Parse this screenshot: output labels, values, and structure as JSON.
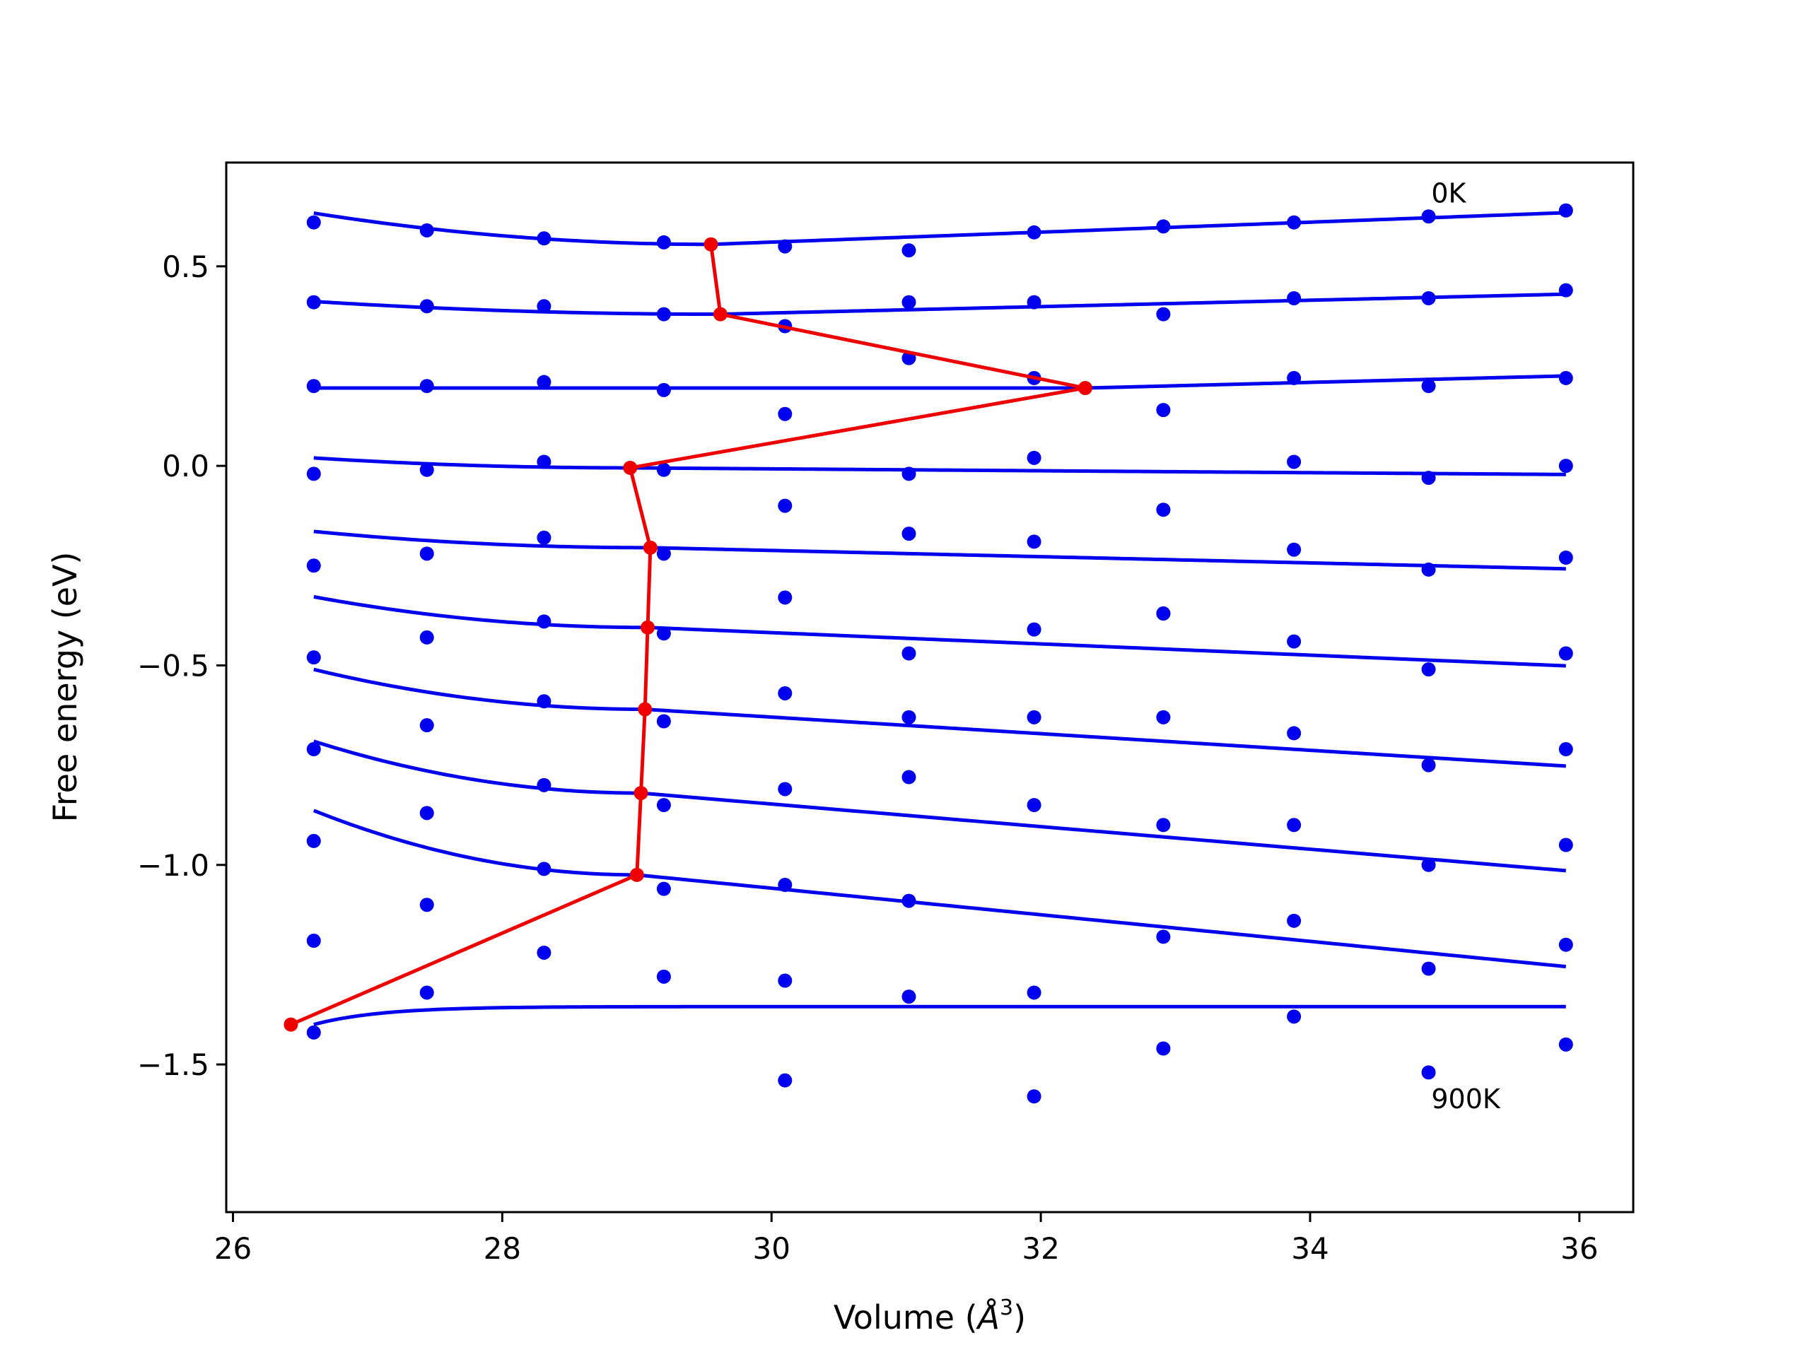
{
  "chart_data": {
    "type": "scatter",
    "xlabel": "Volume (",
    "xlabel_sym": "Å",
    "xlabel_exp": "3",
    "xlabel_close": ")",
    "ylabel": "Free energy (eV)",
    "xlim": [
      25.95,
      36.4
    ],
    "ylim": [
      -1.87,
      0.76
    ],
    "xticks": [
      26,
      28,
      30,
      32,
      34,
      36
    ],
    "xtick_labels": [
      "26",
      "28",
      "30",
      "32",
      "34",
      "36"
    ],
    "yticks": [
      0.5,
      0.0,
      -0.5,
      -1.0,
      -1.5
    ],
    "ytick_labels": [
      "0.5",
      "0.0",
      "−0.5",
      "−1.0",
      "−1.5"
    ],
    "annotations": [
      {
        "text": "0K",
        "x": 34.9,
        "y": 0.66
      },
      {
        "text": "900K",
        "x": 34.9,
        "y": -1.61
      }
    ],
    "colors": {
      "points": "#0000ee",
      "fits": "#0000ee",
      "minimum_path": "#ee0000"
    },
    "volumes": [
      26.6,
      27.44,
      28.31,
      29.2,
      30.1,
      31.02,
      31.95,
      32.91,
      33.88,
      34.88,
      35.9
    ],
    "series": [
      {
        "temperature": "0K",
        "y": [
          0.61,
          0.59,
          0.57,
          0.56,
          0.55,
          0.54,
          0.585,
          0.6,
          0.61,
          0.625,
          0.64
        ],
        "fit": {
          "vmin": 29.55,
          "fmin": 0.555,
          "a": 0.009,
          "b": 0.0125,
          "start": 26.6
        }
      },
      {
        "y": [
          0.41,
          0.4,
          0.4,
          0.38,
          0.35,
          0.41,
          0.41,
          0.38,
          0.42,
          0.42,
          0.44
        ],
        "fit": {
          "vmin": 29.62,
          "fmin": 0.38,
          "a": 0.0035,
          "b": 0.008,
          "start": 26.6
        }
      },
      {
        "y": [
          0.2,
          0.2,
          0.21,
          0.19,
          0.13,
          0.27,
          0.22,
          0.14,
          0.22,
          0.2,
          0.22
        ],
        "fit": {
          "vmin": 32.33,
          "fmin": 0.195,
          "a": 0.0,
          "b": 0.0085,
          "start": 26.6
        }
      },
      {
        "y": [
          -0.02,
          -0.01,
          0.01,
          -0.01,
          -0.1,
          -0.02,
          0.02,
          -0.11,
          0.01,
          -0.03,
          0.0
        ],
        "fit": {
          "vmin": 28.95,
          "fmin": -0.005,
          "a": 0.0045,
          "b": -0.0024,
          "start": 26.6
        }
      },
      {
        "y": [
          -0.25,
          -0.22,
          -0.18,
          -0.22,
          -0.33,
          -0.17,
          -0.19,
          -0.37,
          -0.21,
          -0.26,
          -0.23
        ],
        "fit": {
          "vmin": 29.1,
          "fmin": -0.205,
          "a": 0.0065,
          "b": -0.0078,
          "start": 26.6
        }
      },
      {
        "y": [
          -0.48,
          -0.43,
          -0.39,
          -0.42,
          -0.57,
          -0.47,
          -0.41,
          -0.37,
          -0.44,
          -0.51,
          -0.47
        ],
        "fit": {
          "vmin": 29.08,
          "fmin": -0.405,
          "a": 0.0125,
          "b": -0.0141,
          "start": 26.6
        }
      },
      {
        "y": [
          -0.71,
          -0.65,
          -0.59,
          -0.64,
          -0.81,
          -0.63,
          -0.63,
          -0.63,
          -0.67,
          -0.75,
          -0.71
        ],
        "fit": {
          "vmin": 29.06,
          "fmin": -0.61,
          "a": 0.0165,
          "b": -0.0208,
          "start": 26.6
        }
      },
      {
        "y": [
          -0.94,
          -0.87,
          -0.8,
          -0.85,
          -1.05,
          -0.78,
          -0.85,
          -0.9,
          -0.9,
          -1.0,
          -0.95
        ],
        "fit": {
          "vmin": 29.03,
          "fmin": -0.82,
          "a": 0.022,
          "b": -0.0283,
          "start": 26.6
        }
      },
      {
        "y": [
          -1.19,
          -1.1,
          -1.01,
          -1.06,
          -1.29,
          -1.09,
          -1.32,
          -1.18,
          -1.14,
          -1.26,
          -1.2
        ],
        "fit": {
          "vmin": 29.0,
          "fmin": -1.025,
          "a": 0.028,
          "b": -0.0333,
          "start": 26.6
        }
      },
      {
        "temperature": "900K",
        "y": [
          -1.42,
          -1.32,
          -1.22,
          -1.28,
          -1.54,
          -1.33,
          -1.58,
          -1.46,
          -1.38,
          -1.52,
          -1.45
        ],
        "fit": {
          "type": "flat",
          "fmin": -1.355,
          "start": 26.6
        }
      }
    ],
    "minimum_path": [
      {
        "x": 29.55,
        "y": 0.555
      },
      {
        "x": 29.62,
        "y": 0.38
      },
      {
        "x": 32.33,
        "y": 0.195
      },
      {
        "x": 28.95,
        "y": -0.005
      },
      {
        "x": 29.1,
        "y": -0.205
      },
      {
        "x": 29.08,
        "y": -0.405
      },
      {
        "x": 29.06,
        "y": -0.61
      },
      {
        "x": 29.03,
        "y": -0.82
      },
      {
        "x": 29.0,
        "y": -1.025
      },
      {
        "x": 26.43,
        "y": -1.4
      }
    ]
  }
}
